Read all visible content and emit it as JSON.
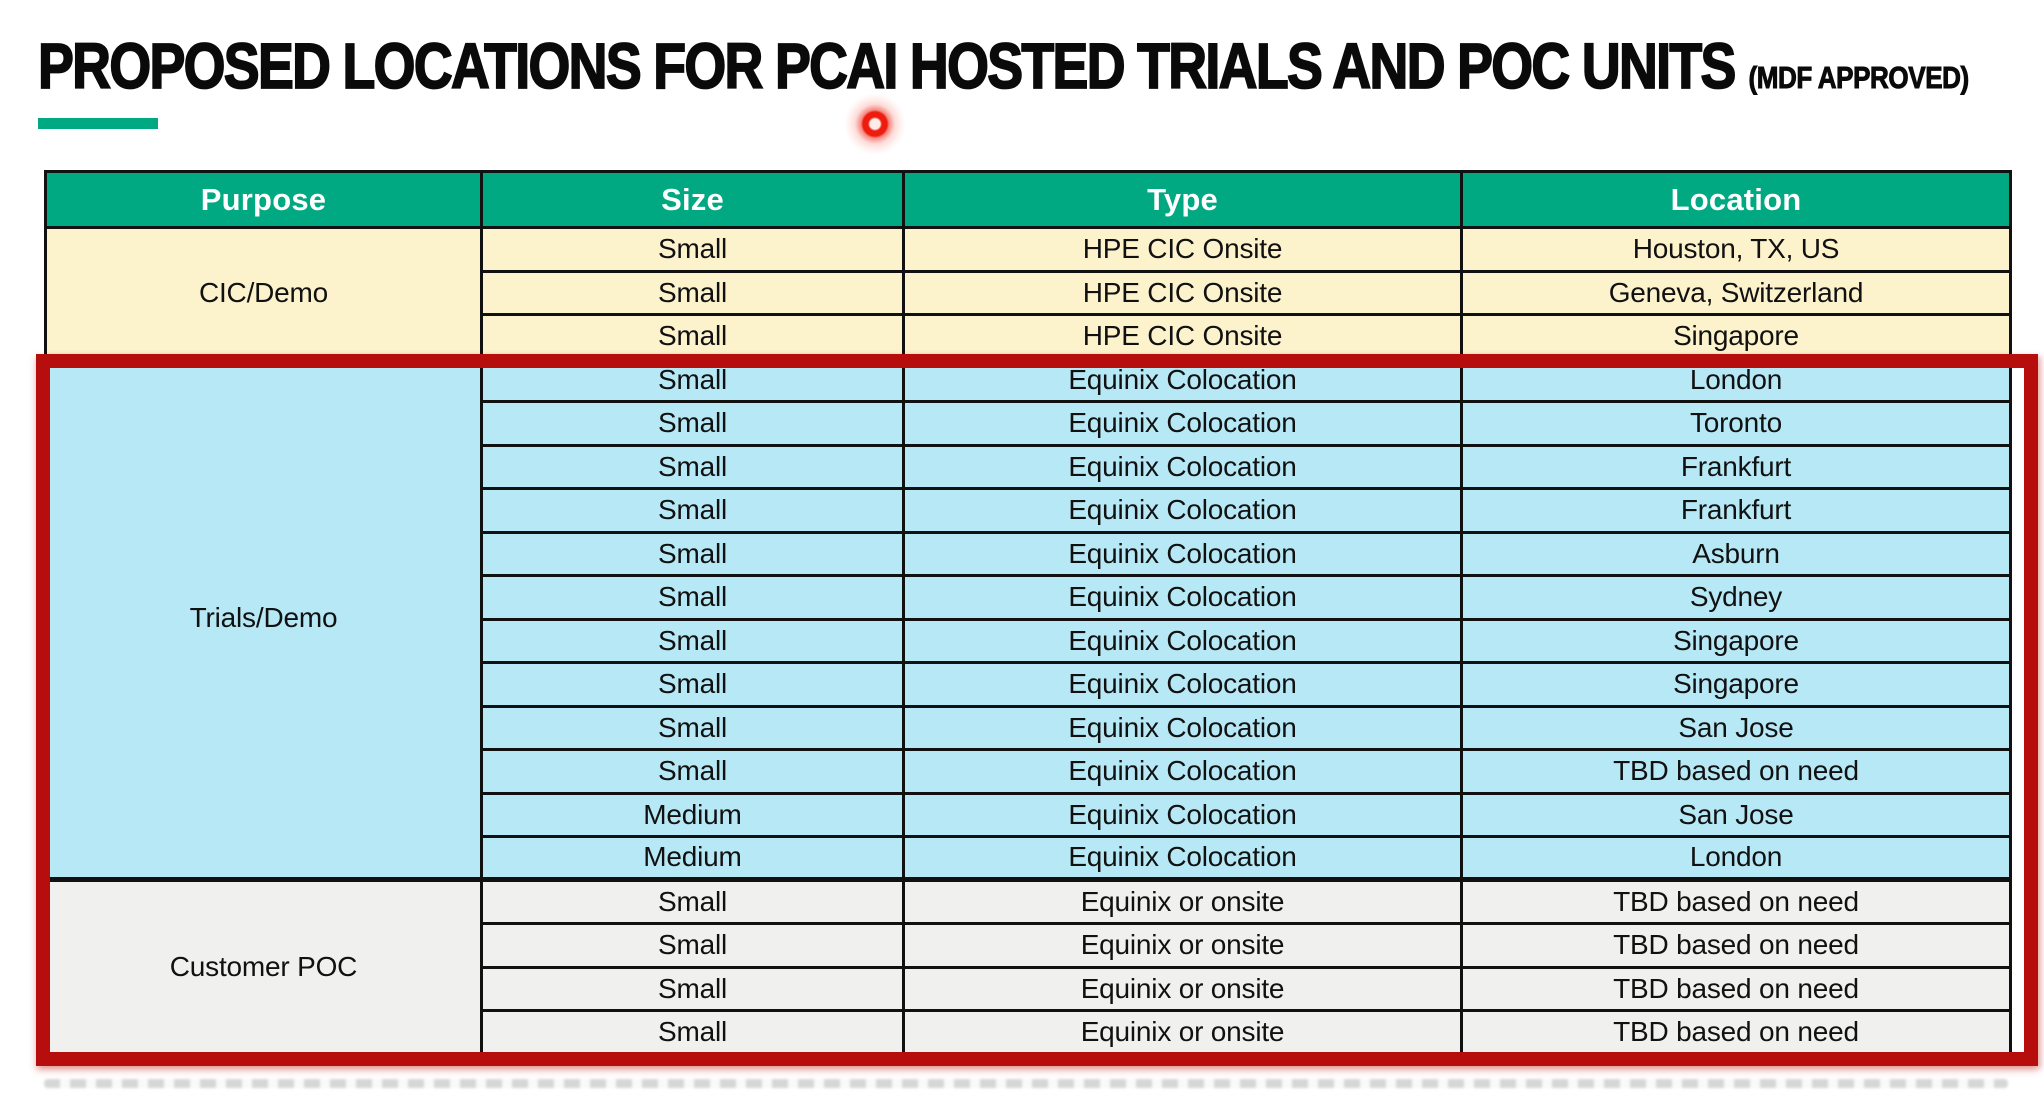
{
  "title": {
    "main": "PROPOSED LOCATIONS FOR PCAI HOSTED TRIALS AND POC UNITS",
    "suffix": "(MDF APPROVED)"
  },
  "colors": {
    "header_bg": "#00A982",
    "accent_bar": "#00A982",
    "cic_section_bg": "#FCF2CC",
    "trials_section_bg": "#B7E8F6",
    "poc_section_bg": "#F0F0EF",
    "highlight_border": "#B60D0D",
    "laser_dot": "#EE1C0F",
    "grid_lines": "#111111"
  },
  "table": {
    "headers": [
      "Purpose",
      "Size",
      "Type",
      "Location"
    ],
    "sections": [
      {
        "purpose": "CIC/Demo",
        "rows": [
          {
            "size": "Small",
            "type": "HPE CIC Onsite",
            "location": "Houston, TX, US"
          },
          {
            "size": "Small",
            "type": "HPE CIC Onsite",
            "location": "Geneva, Switzerland"
          },
          {
            "size": "Small",
            "type": "HPE CIC Onsite",
            "location": "Singapore"
          }
        ]
      },
      {
        "purpose": "Trials/Demo",
        "rows": [
          {
            "size": "Small",
            "type": "Equinix Colocation",
            "location": "London"
          },
          {
            "size": "Small",
            "type": "Equinix Colocation",
            "location": "Toronto"
          },
          {
            "size": "Small",
            "type": "Equinix Colocation",
            "location": "Frankfurt"
          },
          {
            "size": "Small",
            "type": "Equinix Colocation",
            "location": "Frankfurt"
          },
          {
            "size": "Small",
            "type": "Equinix Colocation",
            "location": "Asburn"
          },
          {
            "size": "Small",
            "type": "Equinix Colocation",
            "location": "Sydney"
          },
          {
            "size": "Small",
            "type": "Equinix Colocation",
            "location": "Singapore"
          },
          {
            "size": "Small",
            "type": "Equinix Colocation",
            "location": "Singapore"
          },
          {
            "size": "Small",
            "type": "Equinix Colocation",
            "location": "San Jose"
          },
          {
            "size": "Small",
            "type": "Equinix Colocation",
            "location": "TBD based on need"
          },
          {
            "size": "Medium",
            "type": "Equinix Colocation",
            "location": "San Jose"
          },
          {
            "size": "Medium",
            "type": "Equinix Colocation",
            "location": "London"
          }
        ]
      },
      {
        "purpose": "Customer POC",
        "rows": [
          {
            "size": "Small",
            "type": "Equinix or onsite",
            "location": "TBD based on need"
          },
          {
            "size": "Small",
            "type": "Equinix or onsite",
            "location": "TBD based on need"
          },
          {
            "size": "Small",
            "type": "Equinix or onsite",
            "location": "TBD based on need"
          },
          {
            "size": "Small",
            "type": "Equinix or onsite",
            "location": "TBD based on need"
          }
        ]
      }
    ]
  }
}
